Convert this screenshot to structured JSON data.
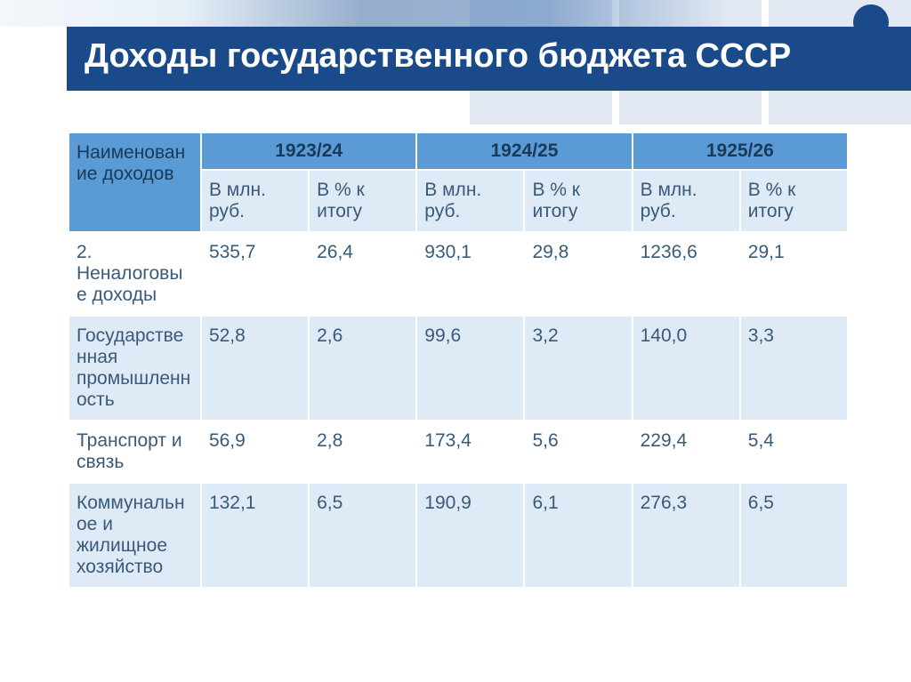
{
  "title": "Доходы государственного бюджета СССР",
  "styling": {
    "title_bg": "#1a4a8a",
    "title_color": "#ffffff",
    "title_fontsize_pt": 29,
    "header_bg": "#5a9bd5",
    "row_alt_bg": "#deeaf6",
    "row_bg": "#ffffff",
    "cell_text_color": "#3a5a7a",
    "cell_fontsize_pt": 16,
    "border_color": "#ffffff",
    "logo_color": "#1a4a8a"
  },
  "table": {
    "type": "table",
    "first_header_label": "Наименование доходов",
    "year_groups": [
      "1923/24",
      "1924/25",
      "1925/26"
    ],
    "sub_headers": [
      "В млн. руб.",
      "В % к итогу"
    ],
    "rows": [
      {
        "label": "2. Неналоговые доходы",
        "cells": [
          "535,7",
          "26,4",
          "930,1",
          "29,8",
          "1236,6",
          "29,1"
        ]
      },
      {
        "label": "Государственная промышленность",
        "cells": [
          "52,8",
          "2,6",
          "99,6",
          "3,2",
          "140,0",
          "3,3"
        ]
      },
      {
        "label": "Транспорт и связь",
        "cells": [
          "56,9",
          "2,8",
          "173,4",
          "5,6",
          "229,4",
          "5,4"
        ]
      },
      {
        "label": "Коммунальное и жилищное хозяйство",
        "cells": [
          "132,1",
          "6,5",
          "190,9",
          "6,1",
          "276,3",
          "6,5"
        ]
      }
    ]
  }
}
